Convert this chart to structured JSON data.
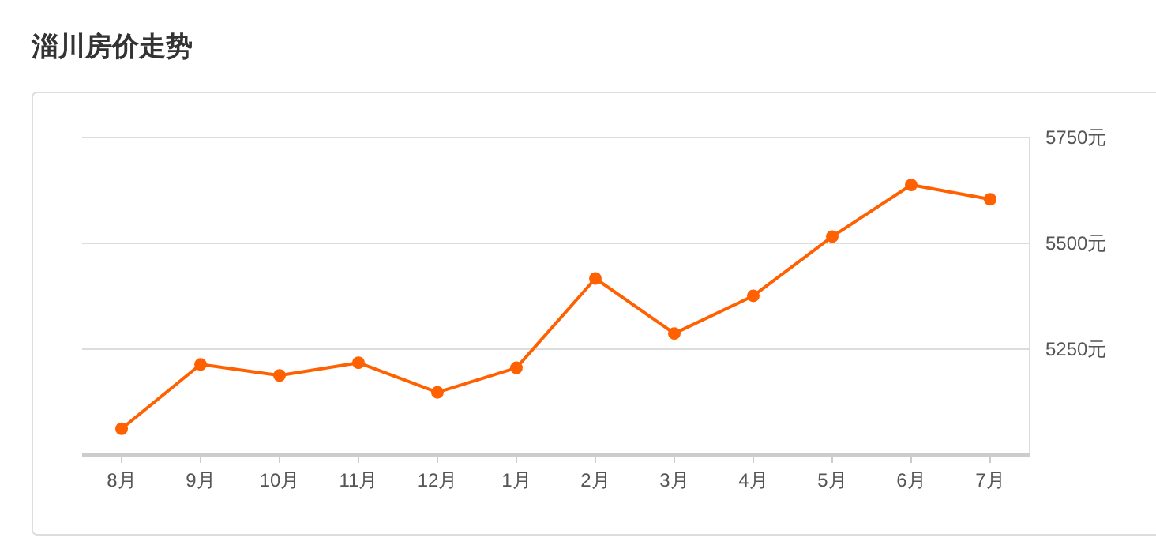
{
  "chart_data": {
    "type": "line",
    "title": "淄川房价走势",
    "categories": [
      "8月",
      "9月",
      "10月",
      "11月",
      "12月",
      "1月",
      "2月",
      "3月",
      "4月",
      "5月",
      "6月",
      "7月"
    ],
    "series": [
      {
        "color": "#ff6000",
        "values": [
          5062,
          5214,
          5188,
          5218,
          5148,
          5206,
          5417,
          5287,
          5376,
          5516,
          5638,
          5604
        ]
      }
    ],
    "ylim": [
      5000,
      5750
    ],
    "yticks": [
      {
        "value": 5250,
        "label": "5250元"
      },
      {
        "value": 5500,
        "label": "5500元"
      },
      {
        "value": 5750,
        "label": "5750元"
      }
    ],
    "grid": "y",
    "marker": "circle",
    "line_style": "solid"
  }
}
